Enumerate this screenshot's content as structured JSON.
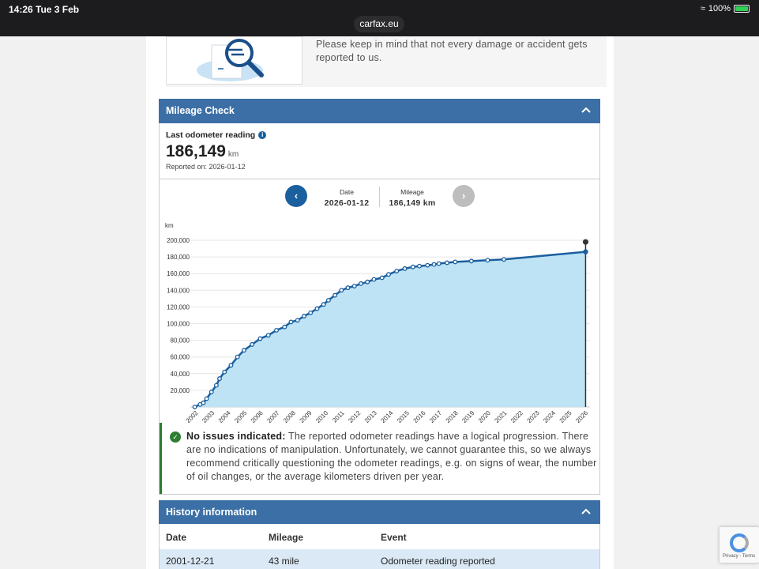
{
  "status_bar": {
    "time": "14:26",
    "date": "Tue 3 Feb",
    "url": "carfax.eu",
    "battery": "100%"
  },
  "intro": {
    "text": "Please keep in mind that not every damage or accident gets reported to us."
  },
  "mileage_section": {
    "title": "Mileage Check",
    "last_label": "Last odometer reading",
    "last_value": "186,149",
    "last_unit": "km",
    "reported_on": "Reported on: 2026-01-12",
    "selector": {
      "date_label": "Date",
      "date_value": "2026-01-12",
      "mileage_label": "Mileage",
      "mileage_value": "186,149 km"
    }
  },
  "chart_data": {
    "type": "area",
    "ylabel": "km",
    "ylim": [
      0,
      200000
    ],
    "yticks": [
      "20,000",
      "40,000",
      "60,000",
      "80,000",
      "100,000",
      "120,000",
      "140,000",
      "160,000",
      "180,000",
      "200,000"
    ],
    "xticks": [
      "2002",
      "2003",
      "2004",
      "2005",
      "2006",
      "2007",
      "2008",
      "2009",
      "2010",
      "2011",
      "2012",
      "2013",
      "2014",
      "2015",
      "2016",
      "2017",
      "2018",
      "2019",
      "2020",
      "2021",
      "2022",
      "2023",
      "2024",
      "2025",
      "2026"
    ],
    "series": [
      {
        "x": [
          2001.97,
          2002.3,
          2002.5,
          2002.7,
          2003.0,
          2003.3,
          2003.5,
          2003.8,
          2004.2,
          2004.6,
          2005.0,
          2005.5,
          2006.0,
          2006.5,
          2007.0,
          2007.5,
          2007.9,
          2008.3,
          2008.7,
          2009.1,
          2009.5,
          2009.9,
          2010.2,
          2010.6,
          2011.0,
          2011.4,
          2011.8,
          2012.2,
          2012.6,
          2013.0,
          2013.5,
          2013.9,
          2014.4,
          2014.9,
          2015.4,
          2015.8,
          2016.3,
          2016.7,
          2017.0,
          2017.5,
          2018.0,
          2019.0,
          2020.0,
          2021.0,
          2026.03
        ],
        "y": [
          69,
          3000,
          5000,
          10000,
          18000,
          26000,
          34000,
          42000,
          50000,
          60000,
          68000,
          75000,
          82000,
          86000,
          92000,
          96000,
          102000,
          104000,
          109000,
          113000,
          118000,
          123000,
          128000,
          134000,
          140000,
          143000,
          145000,
          148000,
          150000,
          153000,
          155000,
          159000,
          163000,
          166000,
          168000,
          169000,
          170000,
          171000,
          172000,
          173000,
          174000,
          175000,
          176000,
          177000,
          186149
        ]
      }
    ],
    "marker_value": 186149
  },
  "notice": {
    "title": "No issues indicated:",
    "text": "The reported odometer readings have a logical progression. There are no indications of manipulation. Unfortunately, we cannot guarantee this, so we always recommend critically questioning the odometer readings, e.g. on signs of wear, the number of oil changes, or the average kilometers driven per year."
  },
  "history_section": {
    "title": "History information",
    "headers": [
      "Date",
      "Mileage",
      "Event"
    ],
    "rows": [
      {
        "date": "2001-12-21",
        "mileage": "43 mile",
        "event": "Odometer reading reported"
      }
    ]
  },
  "recaptcha": {
    "text": "Privacy - Terms"
  },
  "colors": {
    "header": "#3c6fa5",
    "line": "#1a5f9e",
    "area": "#bde3f5",
    "ok": "#2e7d32"
  },
  "icons": {
    "collapse": "chevron-up-icon",
    "info": "info-icon",
    "check": "check-circle-icon"
  }
}
